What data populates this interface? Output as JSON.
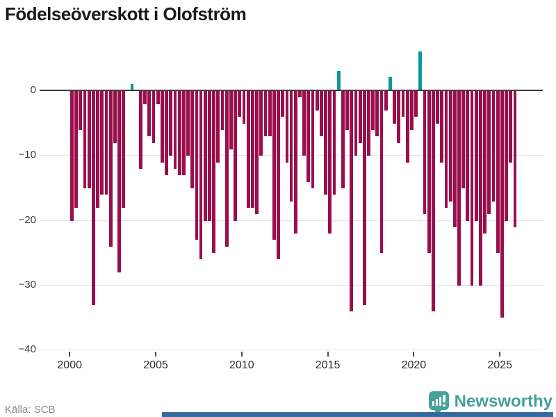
{
  "title": "Födelseöverskott i Olofström",
  "source_label": "Källa: SCB",
  "brand": {
    "name": "Newsworthy"
  },
  "colors": {
    "negative": "#9b0e4c",
    "positive": "#0a999b",
    "axis": "#3d3d3d",
    "grid": "#e3e3e3",
    "brand": "#46a09b",
    "bottombar": "#35699f"
  },
  "chart_data": {
    "type": "bar",
    "title": "Födelseöverskott i Olofström",
    "frequency": "quarterly",
    "start": "2000-Q1",
    "end": "2025-Q4",
    "ylim": [
      -40,
      7
    ],
    "grid": "horizontal",
    "x_ticks": [
      "2000",
      "2005",
      "2010",
      "2015",
      "2020",
      "2025"
    ],
    "y_ticks": [
      {
        "value": 0,
        "label": "0"
      },
      {
        "value": -10,
        "label": "−10"
      },
      {
        "value": -20,
        "label": "−20"
      },
      {
        "value": -30,
        "label": "−30"
      },
      {
        "value": -40,
        "label": "−40"
      }
    ],
    "series": [
      {
        "name": "Födelseöverskott",
        "values": [
          -20,
          -18,
          -6,
          -15,
          -15,
          -33,
          -18,
          -16,
          -16,
          -24,
          -8,
          -28,
          -18,
          0,
          1,
          0,
          -12,
          -2,
          -7,
          -8,
          -2,
          -11,
          -13,
          -10,
          -12,
          -13,
          -13,
          -10,
          -15,
          -23,
          -26,
          -20,
          -20,
          -25,
          -11,
          -6,
          -24,
          -9,
          -20,
          -4,
          -5,
          -18,
          -18,
          -19,
          -10,
          -7,
          -7,
          -23,
          -26,
          -4,
          -11,
          -17,
          -22,
          -1,
          -10,
          -14,
          -15,
          -3,
          -7,
          -16,
          -22,
          -16,
          3,
          -15,
          -6,
          -34,
          -10,
          -8,
          -33,
          -10,
          -6,
          -7,
          -25,
          -3,
          2,
          -5,
          -8,
          -4,
          -11,
          -6,
          -4,
          6,
          -19,
          -25,
          -34,
          -5,
          -11,
          -18,
          -17,
          -21,
          -30,
          -15,
          -20,
          -30,
          -20,
          -30,
          -22,
          -19,
          -17,
          -25,
          -35,
          -20,
          -11,
          -21
        ]
      }
    ]
  }
}
